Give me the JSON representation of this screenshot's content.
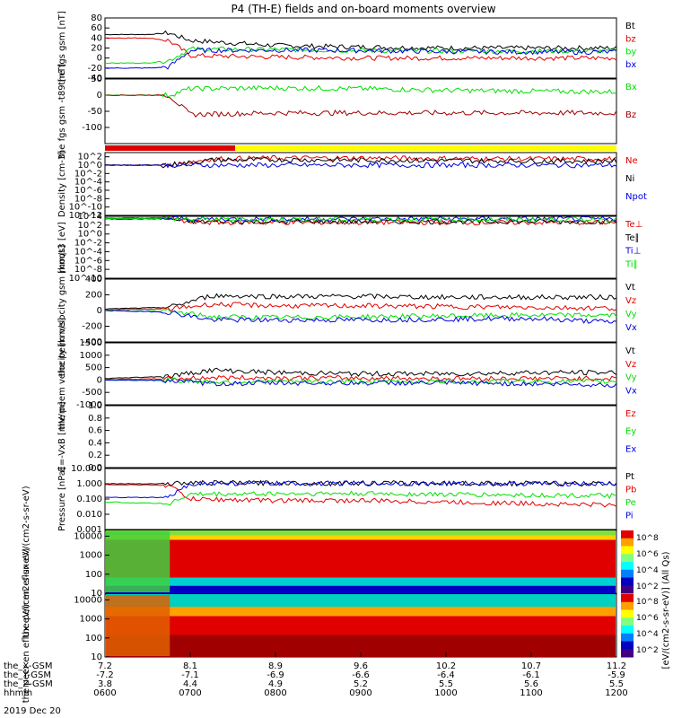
{
  "title": "P4 (TH-E) fields and on-board moments overview",
  "time_axis": {
    "rows": [
      {
        "label": "the_X-GSM",
        "values": [
          "7.2",
          "8.1",
          "8.9",
          "9.6",
          "10.2",
          "10.7",
          "11.2"
        ]
      },
      {
        "label": "the_Y-GSM",
        "values": [
          "-7.2",
          "-7.1",
          "-6.9",
          "-6.6",
          "-6.4",
          "-6.1",
          "-5.9"
        ]
      },
      {
        "label": "the_Z-GSM",
        "values": [
          "3.8",
          "4.4",
          "4.9",
          "5.2",
          "5.5",
          "5.6",
          "5.5"
        ]
      },
      {
        "label": "hhmm",
        "values": [
          "0600",
          "0700",
          "0800",
          "0900",
          "1000",
          "1100",
          "1200"
        ]
      }
    ],
    "date": "2019 Dec 20"
  },
  "colorbar_label": "[eV/(cm2-s-sr-eV)] (All Qs)",
  "colors": {
    "black": "#000000",
    "red": "#e00000",
    "green": "#00e000",
    "blue": "#0000e0",
    "darkred": "#a00000",
    "yellow": "#ffff00"
  },
  "chart_data": [
    {
      "type": "line",
      "ylabel": "the fgs gsm [nT]",
      "ylim": [
        -40,
        80
      ],
      "yticks": [
        "80",
        "60",
        "40",
        "20",
        "0",
        "-20",
        "-40"
      ],
      "xlim": [
        "0600",
        "1200"
      ],
      "series": [
        {
          "name": "Bt",
          "color": "#000000",
          "x": [
            "0600",
            "0630",
            "0645",
            "0700",
            "0800",
            "0900",
            "1000",
            "1100",
            "1200"
          ],
          "y": [
            47,
            47,
            50,
            35,
            25,
            22,
            20,
            20,
            20
          ]
        },
        {
          "name": "bz",
          "color": "#e00000",
          "x": [
            "0600",
            "0630",
            "0645",
            "0700",
            "0800",
            "0900",
            "1000",
            "1100",
            "1200"
          ],
          "y": [
            40,
            40,
            35,
            5,
            2,
            0,
            0,
            0,
            0
          ]
        },
        {
          "name": "by",
          "color": "#00e000",
          "x": [
            "0600",
            "0630",
            "0645",
            "0700",
            "0800",
            "0900",
            "1000",
            "1100",
            "1200"
          ],
          "y": [
            -10,
            -10,
            -5,
            18,
            17,
            15,
            14,
            14,
            14
          ]
        },
        {
          "name": "bx",
          "color": "#0000e0",
          "x": [
            "0600",
            "0630",
            "0645",
            "0700",
            "0800",
            "0900",
            "1000",
            "1100",
            "1200"
          ],
          "y": [
            -20,
            -20,
            -18,
            15,
            16,
            15,
            13,
            12,
            12
          ]
        }
      ]
    },
    {
      "type": "line",
      "ylabel": "the fgs gsm -t89 [nT]",
      "ylim": [
        -150,
        50
      ],
      "yticks": [
        "50",
        "0",
        "-50",
        "-100"
      ],
      "xlim": [
        "0600",
        "1200"
      ],
      "series": [
        {
          "name": "Bx",
          "color": "#00e000",
          "x": [
            "0600",
            "0645",
            "0700",
            "0800",
            "0900",
            "1000",
            "1100",
            "1200"
          ],
          "y": [
            0,
            0,
            20,
            22,
            20,
            15,
            12,
            10
          ]
        },
        {
          "name": "Bz",
          "color": "#a00000",
          "x": [
            "0600",
            "0645",
            "0700",
            "0800",
            "0900",
            "1000",
            "1100",
            "1200"
          ],
          "y": [
            0,
            0,
            -60,
            -55,
            -55,
            -55,
            -55,
            -55
          ]
        }
      ]
    },
    {
      "type": "line",
      "ylabel": "Density [cm-3]",
      "log": true,
      "ylim": [
        -12,
        3
      ],
      "yticks": [
        "10^2",
        "10^0",
        "10^-2",
        "10^-4",
        "10^-6",
        "10^-8",
        "10^-10",
        "10^-12"
      ],
      "xlim": [
        "0600",
        "1200"
      ],
      "series": [
        {
          "name": "Ne",
          "color": "#e00000",
          "x": [
            "0600",
            "0645",
            "0715",
            "0800",
            "0900",
            "1000",
            "1100",
            "1200"
          ],
          "y": [
            0,
            0,
            1.5,
            1.7,
            1.7,
            1.6,
            1.5,
            1.5
          ]
        },
        {
          "name": "Ni",
          "color": "#000000",
          "x": [
            "0600",
            "0645",
            "0715",
            "0800",
            "0900",
            "1000",
            "1100",
            "1200"
          ],
          "y": [
            0,
            0,
            1.2,
            1.3,
            1.2,
            1.1,
            1.0,
            1.0
          ]
        },
        {
          "name": "Npot",
          "color": "#0000e0",
          "x": [
            "0600",
            "1200"
          ],
          "y": [
            0,
            0
          ]
        }
      ]
    },
    {
      "type": "line",
      "ylabel": "moqt3 [eV]",
      "log": true,
      "ylim": [
        -10,
        4
      ],
      "yticks": [
        "10^4",
        "10^2",
        "10^0",
        "10^-2",
        "10^-4",
        "10^-6",
        "10^-8",
        "10^-10"
      ],
      "xlim": [
        "0600",
        "1200"
      ],
      "series": [
        {
          "name": "Te⊥",
          "color": "#e00000",
          "x": [
            "0600",
            "0645",
            "0700",
            "0800",
            "1000",
            "1200"
          ],
          "y": [
            3.5,
            3.5,
            2.6,
            2.6,
            2.6,
            2.6
          ]
        },
        {
          "name": "Te∥",
          "color": "#000000",
          "x": [
            "0600",
            "0645",
            "0700",
            "0800",
            "1000",
            "1200"
          ],
          "y": [
            3.4,
            3.4,
            2.8,
            2.8,
            2.8,
            2.8
          ]
        },
        {
          "name": "Ti⊥",
          "color": "#0000e0",
          "x": [
            "0600",
            "0645",
            "0700",
            "0800",
            "1000",
            "1200"
          ],
          "y": [
            3.6,
            3.6,
            3.4,
            3.4,
            3.4,
            3.4
          ]
        },
        {
          "name": "Ti∥",
          "color": "#00e000",
          "x": [
            "0600",
            "0645",
            "0700",
            "0800",
            "1000",
            "1200"
          ],
          "y": [
            3.5,
            3.5,
            3.3,
            3.3,
            3.3,
            3.3
          ]
        }
      ]
    },
    {
      "type": "line",
      "ylabel": "the peim velocity gsm [km/s]",
      "ylim": [
        -400,
        400
      ],
      "yticks": [
        "400",
        "200",
        "0",
        "-200",
        "-400"
      ],
      "xlim": [
        "0600",
        "1200"
      ],
      "series": [
        {
          "name": "Vt",
          "color": "#000000",
          "x": [
            "0600",
            "0645",
            "0715",
            "0800",
            "0900",
            "1000",
            "1100",
            "1200"
          ],
          "y": [
            20,
            40,
            190,
            180,
            180,
            170,
            170,
            170
          ]
        },
        {
          "name": "Vz",
          "color": "#e00000",
          "x": [
            "0600",
            "0645",
            "0715",
            "0800",
            "0900",
            "1000",
            "1100",
            "1200"
          ],
          "y": [
            10,
            20,
            80,
            60,
            60,
            50,
            40,
            30
          ]
        },
        {
          "name": "Vy",
          "color": "#00e000",
          "x": [
            "0600",
            "0645",
            "0715",
            "0800",
            "0900",
            "1000",
            "1100",
            "1200"
          ],
          "y": [
            0,
            -10,
            -80,
            -90,
            -80,
            -70,
            -60,
            -60
          ]
        },
        {
          "name": "Vx",
          "color": "#0000e0",
          "x": [
            "0600",
            "0645",
            "0715",
            "0800",
            "0900",
            "1000",
            "1100",
            "1200"
          ],
          "y": [
            0,
            -20,
            -120,
            -120,
            -120,
            -110,
            -100,
            -150
          ]
        }
      ]
    },
    {
      "type": "line",
      "ylabel": "the peem velocity [km/s]",
      "ylim": [
        -1000,
        1500
      ],
      "yticks": [
        "1500",
        "1000",
        "500",
        "0",
        "-500",
        "-1000"
      ],
      "xlim": [
        "0600",
        "1200"
      ],
      "series": [
        {
          "name": "Vt",
          "color": "#000000",
          "x": [
            "0600",
            "0645",
            "0715",
            "0800",
            "0900",
            "1000",
            "1100",
            "1200"
          ],
          "y": [
            60,
            150,
            400,
            300,
            250,
            250,
            300,
            300
          ]
        },
        {
          "name": "Vz",
          "color": "#e00000",
          "x": [
            "0600",
            "0645",
            "0715",
            "0800",
            "0900",
            "1000",
            "1100",
            "1200"
          ],
          "y": [
            20,
            50,
            100,
            80,
            80,
            60,
            60,
            60
          ]
        },
        {
          "name": "Vy",
          "color": "#00e000",
          "x": [
            "0600",
            "0645",
            "0715",
            "0800",
            "0900",
            "1000",
            "1100",
            "1200"
          ],
          "y": [
            0,
            0,
            -80,
            -60,
            -60,
            -60,
            -60,
            -60
          ]
        },
        {
          "name": "Vx",
          "color": "#0000e0",
          "x": [
            "0600",
            "0645",
            "0715",
            "0800",
            "0900",
            "1000",
            "1100",
            "1200"
          ],
          "y": [
            0,
            -20,
            -150,
            -120,
            -120,
            -120,
            -150,
            -200
          ]
        }
      ]
    },
    {
      "type": "line",
      "ylabel": "E=-VxB [mV/m]",
      "ylim": [
        0,
        1
      ],
      "yticks": [
        "1.0",
        "0.8",
        "0.6",
        "0.4",
        "0.2",
        "0.0"
      ],
      "xlim": [
        "0600",
        "1200"
      ],
      "series": [
        {
          "name": "Ez",
          "color": "#e00000",
          "x": [],
          "y": []
        },
        {
          "name": "Ey",
          "color": "#00e000",
          "x": [],
          "y": []
        },
        {
          "name": "Ex",
          "color": "#0000e0",
          "x": [],
          "y": []
        }
      ]
    },
    {
      "type": "line",
      "ylabel": "Pressure [nPa]",
      "log": true,
      "ylim": [
        -3,
        1
      ],
      "yticks": [
        "10.000",
        "1.000",
        "0.100",
        "0.010",
        "0.001"
      ],
      "xlim": [
        "0600",
        "1200"
      ],
      "series": [
        {
          "name": "Pt",
          "color": "#000000",
          "x": [
            "0600",
            "0645",
            "0700",
            "0800",
            "1000",
            "1200"
          ],
          "y": [
            0.0,
            0.0,
            0.05,
            0.05,
            0.03,
            0.0
          ]
        },
        {
          "name": "Pb",
          "color": "#e00000",
          "x": [
            "0600",
            "0645",
            "0700",
            "0800",
            "0900",
            "1000",
            "1100",
            "1200"
          ],
          "y": [
            -0.05,
            -0.1,
            -1.0,
            -1.1,
            -1.1,
            -1.2,
            -1.3,
            -1.4
          ]
        },
        {
          "name": "Pe",
          "color": "#00e000",
          "x": [
            "0600",
            "0645",
            "0700",
            "0800",
            "0900",
            "1000",
            "1100",
            "1200"
          ],
          "y": [
            -1.2,
            -1.3,
            -0.7,
            -0.65,
            -0.65,
            -0.7,
            -0.75,
            -0.8
          ]
        },
        {
          "name": "Pi",
          "color": "#0000e0",
          "x": [
            "0600",
            "0645",
            "0700",
            "0800",
            "1000",
            "1200"
          ],
          "y": [
            -0.9,
            -0.9,
            0.02,
            0.02,
            0.02,
            0.0
          ]
        }
      ]
    },
    {
      "type": "heatmap",
      "ylabel": "the peir en eflux eV/(cm2-s-sr-eV)",
      "ylim": [
        10,
        20000
      ],
      "yticks": [
        "10000",
        "1000",
        "100",
        "10"
      ],
      "log": true,
      "colorbar_ticks": [
        "10^8",
        "10^6",
        "10^4",
        "10^2"
      ]
    },
    {
      "type": "heatmap",
      "ylabel": "the peer en eflux eV/(cm2-s-sr-eV)",
      "ylim": [
        10,
        20000
      ],
      "yticks": [
        "10000",
        "1000",
        "100",
        "10"
      ],
      "log": true,
      "colorbar_ticks": [
        "10^8",
        "10^6",
        "10^4",
        "10^2"
      ]
    }
  ]
}
